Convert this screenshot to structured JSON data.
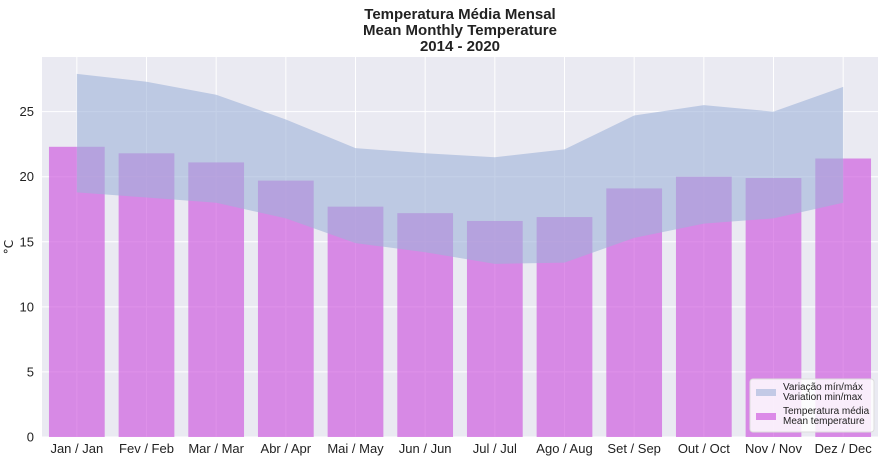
{
  "chart_data": {
    "type": "bar",
    "title_lines": [
      "Temperatura Média Mensal",
      "Mean Monthly Temperature",
      "2014 - 2020"
    ],
    "xlabel": "",
    "ylabel": "°C",
    "ylim": [
      0,
      29.2
    ],
    "yticks": [
      0,
      5,
      10,
      15,
      20,
      25
    ],
    "grid": true,
    "legend_position": "bottom-right",
    "categories": [
      "Jan / Jan",
      "Fev / Feb",
      "Mar / Mar",
      "Abr / Apr",
      "Mai / May",
      "Jun / Jun",
      "Jul / Jul",
      "Ago / Aug",
      "Set / Sep",
      "Out / Oct",
      "Nov / Nov",
      "Dez / Dec"
    ],
    "series": [
      {
        "name_lines": [
          "Temperatura média",
          "Mean temperature"
        ],
        "kind": "bar",
        "color": "#cc55dd",
        "values": [
          22.3,
          21.8,
          21.1,
          19.7,
          17.7,
          17.2,
          16.6,
          16.9,
          19.1,
          20.0,
          19.9,
          21.4
        ]
      },
      {
        "name_lines": [
          "Variação mín/máx",
          "Variation min/max"
        ],
        "kind": "band",
        "color": "#9fb2d8",
        "min": [
          18.8,
          18.4,
          18.0,
          16.8,
          14.9,
          14.2,
          13.3,
          13.4,
          15.3,
          16.4,
          16.8,
          18.0
        ],
        "max": [
          27.9,
          27.3,
          26.3,
          24.4,
          22.2,
          21.8,
          21.5,
          22.1,
          24.7,
          25.5,
          25.0,
          26.9
        ]
      }
    ],
    "colors": {
      "plot_background": "#eaeaf2",
      "grid": "#ffffff",
      "text": "#222222"
    }
  }
}
